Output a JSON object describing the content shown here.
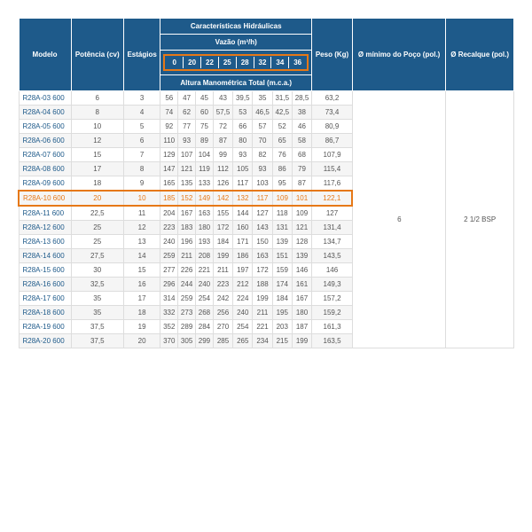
{
  "headers": {
    "modelo": "Modelo",
    "potencia": "Potência (cv)",
    "estagios": "Estágios",
    "caracteristicas": "Características Hidráulicas",
    "vazao": "Vazão (m³/h)",
    "altura": "Altura Manométrica Total (m.c.a.)",
    "peso": "Peso (Kg)",
    "diam_poco": "Ø mínimo do Poço (pol.)",
    "recalque": "Ø Recalque (pol.)"
  },
  "flow_values": [
    "0",
    "20",
    "22",
    "25",
    "28",
    "32",
    "34",
    "36"
  ],
  "diam_poco_value": "6",
  "recalque_value": "2 1/2 BSP",
  "rows": [
    {
      "m": "R28A-03 600",
      "p": "6",
      "e": "3",
      "v": [
        "56",
        "47",
        "45",
        "43",
        "39,5",
        "35",
        "31,5",
        "28,5"
      ],
      "kg": "63,2"
    },
    {
      "m": "R28A-04 600",
      "p": "8",
      "e": "4",
      "v": [
        "74",
        "62",
        "60",
        "57,5",
        "53",
        "46,5",
        "42,5",
        "38"
      ],
      "kg": "73,4"
    },
    {
      "m": "R28A-05 600",
      "p": "10",
      "e": "5",
      "v": [
        "92",
        "77",
        "75",
        "72",
        "66",
        "57",
        "52",
        "46"
      ],
      "kg": "80,9"
    },
    {
      "m": "R28A-06 600",
      "p": "12",
      "e": "6",
      "v": [
        "110",
        "93",
        "89",
        "87",
        "80",
        "70",
        "65",
        "58"
      ],
      "kg": "86,7"
    },
    {
      "m": "R28A-07 600",
      "p": "15",
      "e": "7",
      "v": [
        "129",
        "107",
        "104",
        "99",
        "93",
        "82",
        "76",
        "68"
      ],
      "kg": "107,9"
    },
    {
      "m": "R28A-08 600",
      "p": "17",
      "e": "8",
      "v": [
        "147",
        "121",
        "119",
        "112",
        "105",
        "93",
        "86",
        "79"
      ],
      "kg": "115,4"
    },
    {
      "m": "R28A-09 600",
      "p": "18",
      "e": "9",
      "v": [
        "165",
        "135",
        "133",
        "126",
        "117",
        "103",
        "95",
        "87"
      ],
      "kg": "117,6"
    },
    {
      "m": "R28A-10 600",
      "p": "20",
      "e": "10",
      "v": [
        "185",
        "152",
        "149",
        "142",
        "132",
        "117",
        "109",
        "101"
      ],
      "kg": "122,1",
      "hl": true
    },
    {
      "m": "R28A-11 600",
      "p": "22,5",
      "e": "11",
      "v": [
        "204",
        "167",
        "163",
        "155",
        "144",
        "127",
        "118",
        "109"
      ],
      "kg": "127"
    },
    {
      "m": "R28A-12 600",
      "p": "25",
      "e": "12",
      "v": [
        "223",
        "183",
        "180",
        "172",
        "160",
        "143",
        "131",
        "121"
      ],
      "kg": "131,4"
    },
    {
      "m": "R28A-13 600",
      "p": "25",
      "e": "13",
      "v": [
        "240",
        "196",
        "193",
        "184",
        "171",
        "150",
        "139",
        "128"
      ],
      "kg": "134,7"
    },
    {
      "m": "R28A-14 600",
      "p": "27,5",
      "e": "14",
      "v": [
        "259",
        "211",
        "208",
        "199",
        "186",
        "163",
        "151",
        "139"
      ],
      "kg": "143,5"
    },
    {
      "m": "R28A-15 600",
      "p": "30",
      "e": "15",
      "v": [
        "277",
        "226",
        "221",
        "211",
        "197",
        "172",
        "159",
        "146"
      ],
      "kg": "146"
    },
    {
      "m": "R28A-16 600",
      "p": "32,5",
      "e": "16",
      "v": [
        "296",
        "244",
        "240",
        "223",
        "212",
        "188",
        "174",
        "161"
      ],
      "kg": "149,3"
    },
    {
      "m": "R28A-17 600",
      "p": "35",
      "e": "17",
      "v": [
        "314",
        "259",
        "254",
        "242",
        "224",
        "199",
        "184",
        "167"
      ],
      "kg": "157,2"
    },
    {
      "m": "R28A-18 600",
      "p": "35",
      "e": "18",
      "v": [
        "332",
        "273",
        "268",
        "256",
        "240",
        "211",
        "195",
        "180"
      ],
      "kg": "159,2"
    },
    {
      "m": "R28A-19 600",
      "p": "37,5",
      "e": "19",
      "v": [
        "352",
        "289",
        "284",
        "270",
        "254",
        "221",
        "203",
        "187"
      ],
      "kg": "161,3"
    },
    {
      "m": "R28A-20 600",
      "p": "37,5",
      "e": "20",
      "v": [
        "370",
        "305",
        "299",
        "285",
        "265",
        "234",
        "215",
        "199"
      ],
      "kg": "163,5"
    }
  ],
  "style": {
    "header_bg": "#1e5a8a",
    "highlight_color": "#e67817",
    "row_alt_bg": "#f5f5f5",
    "border_color": "#dddddd"
  }
}
